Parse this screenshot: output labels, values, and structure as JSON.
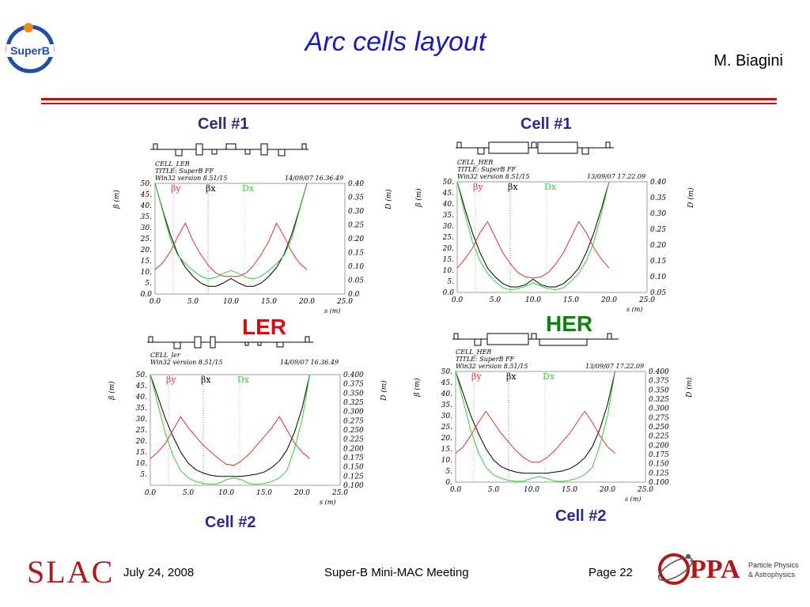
{
  "slide": {
    "title": "Arc cells layout",
    "author": "M. Biagini",
    "logo_text": "SuperB",
    "labels": {
      "cell1_ler": "Cell #1",
      "cell1_her": "Cell #1",
      "cell2_ler": "Cell #2",
      "cell2_her": "Cell #2",
      "ler": "LER",
      "her": "HER"
    },
    "footer": {
      "date": "July 24, 2008",
      "meeting": "Super-B Mini-MAC Meeting",
      "page": "Page 22",
      "slac": "SLAC",
      "ppa": "PPA",
      "ppa_sub1": "Particle Physics",
      "ppa_sub2": "& Astrophysics"
    },
    "colors": {
      "title": "#1c1cb4",
      "ler": "#d01010",
      "her": "#108010",
      "beta_x": "#000000",
      "beta_y": "#e03030",
      "dispersion": "#30d030"
    }
  },
  "chart_data": [
    {
      "type": "line",
      "id": "ler-cell1",
      "header": [
        "CELL_LER",
        "TITLE: SuperB FF",
        "Win32 version 8.51/15"
      ],
      "date": "14/09/07  16.36.49",
      "xlabel": "s (m)",
      "ylabel_left": "β (m)",
      "ylabel_right": "D (m)",
      "xticks": [
        "0.0",
        "5.0",
        "10.0",
        "15.0",
        "20.0",
        "25.0"
      ],
      "yticks_left": [
        "0.0",
        "5.",
        "10.",
        "15.",
        "20.",
        "25.",
        "30.",
        "35.",
        "40.",
        "45.",
        "50."
      ],
      "yticks_right": [
        "0.0",
        "0.05",
        "0.10",
        "0.15",
        "0.20",
        "0.25",
        "0.30",
        "0.35",
        "0.40"
      ],
      "xlim": [
        0,
        25
      ],
      "ylim": [
        0,
        50
      ],
      "y2lim": [
        0,
        0.4
      ],
      "legend": [
        "βy",
        "βx",
        "Dx"
      ],
      "series": [
        {
          "name": "βx",
          "axis": "left",
          "x": [
            0,
            1,
            2,
            3,
            4,
            5,
            6,
            7,
            8,
            9,
            10,
            11,
            12,
            13,
            14,
            15,
            16,
            17,
            18,
            19,
            20
          ],
          "values": [
            50,
            38,
            27,
            18,
            12,
            8,
            5,
            3.5,
            3.5,
            5,
            7,
            5,
            3.5,
            3.5,
            5,
            8,
            12,
            18,
            27,
            38,
            50
          ]
        },
        {
          "name": "βy",
          "axis": "left",
          "x": [
            0,
            1,
            2,
            3,
            4,
            5,
            6,
            7,
            8,
            9,
            10,
            11,
            12,
            13,
            14,
            15,
            16,
            17,
            18,
            19,
            20
          ],
          "values": [
            11,
            14,
            19,
            26,
            32,
            24,
            18,
            13,
            9.5,
            8,
            8,
            8,
            9.5,
            13,
            18,
            24,
            32,
            26,
            19,
            14,
            11
          ]
        },
        {
          "name": "Dx",
          "axis": "right",
          "x": [
            0,
            1,
            2,
            3,
            4,
            5,
            6,
            7,
            8,
            9,
            10,
            11,
            12,
            13,
            14,
            15,
            16,
            17,
            18,
            19,
            20
          ],
          "values": [
            0.4,
            0.3,
            0.2,
            0.14,
            0.11,
            0.085,
            0.065,
            0.055,
            0.06,
            0.075,
            0.085,
            0.075,
            0.06,
            0.055,
            0.065,
            0.085,
            0.11,
            0.14,
            0.2,
            0.3,
            0.4
          ]
        }
      ]
    },
    {
      "type": "line",
      "id": "her-cell1",
      "header": [
        "CELL_HER",
        "TITLE: SuperB FF",
        "Win32 version 8.51/15"
      ],
      "date": "13/09/07  17.22.09",
      "xlabel": "s (m)",
      "ylabel_left": "β (m)",
      "ylabel_right": "D (m)",
      "xticks": [
        "0.0",
        "5.0",
        "10.0",
        "15.0",
        "20.0",
        "25.0"
      ],
      "yticks_left": [
        "0.0",
        "5.",
        "10.",
        "15.",
        "20.",
        "25.",
        "30.",
        "35.",
        "40.",
        "45.",
        "50."
      ],
      "yticks_right": [
        "0.05",
        "0.10",
        "0.15",
        "0.20",
        "0.25",
        "0.30",
        "0.35",
        "0.40"
      ],
      "xlim": [
        0,
        25
      ],
      "ylim": [
        0,
        50
      ],
      "y2lim": [
        0.05,
        0.4
      ],
      "legend": [
        "βy",
        "βx",
        "Dx"
      ],
      "series": [
        {
          "name": "βx",
          "axis": "left",
          "x": [
            0,
            1,
            2,
            3,
            4,
            5,
            6,
            7,
            8,
            9,
            10,
            11,
            12,
            13,
            14,
            15,
            16,
            17,
            18,
            19,
            20
          ],
          "values": [
            50,
            38,
            27,
            18,
            11,
            7,
            4,
            2.5,
            2.5,
            3.5,
            6,
            3.5,
            2.5,
            2.5,
            4,
            7,
            11,
            18,
            27,
            38,
            50
          ]
        },
        {
          "name": "βy",
          "axis": "left",
          "x": [
            0,
            1,
            2,
            3,
            4,
            5,
            6,
            7,
            8,
            9,
            10,
            11,
            12,
            13,
            14,
            15,
            16,
            17,
            18,
            19,
            20
          ],
          "values": [
            11,
            15,
            20,
            27,
            32,
            25,
            18,
            13,
            9,
            7,
            6.5,
            7,
            9,
            13,
            18,
            25,
            32,
            27,
            20,
            15,
            11
          ]
        },
        {
          "name": "Dx",
          "axis": "right",
          "x": [
            0,
            1,
            2,
            3,
            4,
            5,
            6,
            7,
            8,
            9,
            10,
            11,
            12,
            13,
            14,
            15,
            16,
            17,
            18,
            19,
            20
          ],
          "values": [
            0.4,
            0.3,
            0.21,
            0.15,
            0.11,
            0.085,
            0.065,
            0.058,
            0.062,
            0.07,
            0.08,
            0.07,
            0.062,
            0.058,
            0.065,
            0.085,
            0.11,
            0.15,
            0.21,
            0.3,
            0.4
          ]
        }
      ]
    },
    {
      "type": "line",
      "id": "ler-cell2",
      "header": [
        "CELL_ler",
        "Win32 version 8.51/15"
      ],
      "date": "14/09/07  16.36.49",
      "xlabel": "s (m)",
      "ylabel_left": "β (m)",
      "ylabel_right": "D (m)",
      "xticks": [
        "0.0",
        "5.0",
        "10.0",
        "15.0",
        "20.0",
        "25.0"
      ],
      "yticks_left": [
        "5.",
        "10.",
        "15.",
        "20.",
        "25.",
        "30.",
        "35.",
        "40.",
        "45.",
        "50."
      ],
      "yticks_right": [
        "0.100",
        "0.125",
        "0.150",
        "0.175",
        "0.200",
        "0.225",
        "0.250",
        "0.275",
        "0.300",
        "0.325",
        "0.350",
        "0.375",
        "0.400"
      ],
      "xlim": [
        0,
        25
      ],
      "ylim": [
        0,
        50
      ],
      "y2lim": [
        0.1,
        0.4
      ],
      "legend": [
        "βy",
        "βx",
        "Dx"
      ],
      "series": [
        {
          "name": "βx",
          "axis": "left",
          "x": [
            0,
            1,
            2,
            3,
            4,
            5,
            6,
            7,
            8,
            9,
            10,
            11,
            12,
            13,
            14,
            15,
            16,
            17,
            18,
            19,
            20,
            21
          ],
          "values": [
            50,
            40,
            30,
            22,
            15,
            10,
            7,
            5.5,
            4.5,
            4,
            4,
            4,
            4,
            4.5,
            5,
            6,
            8,
            11,
            16,
            24,
            35,
            50
          ]
        },
        {
          "name": "βy",
          "axis": "left",
          "x": [
            0,
            1,
            2,
            3,
            4,
            5,
            6,
            7,
            8,
            9,
            10,
            11,
            12,
            13,
            14,
            15,
            16,
            17,
            18,
            19,
            20,
            21
          ],
          "values": [
            12,
            15,
            19,
            25,
            31,
            26,
            22,
            18,
            15,
            12,
            9.5,
            9,
            11,
            14,
            18,
            22,
            26,
            31,
            25,
            19,
            15,
            12
          ]
        },
        {
          "name": "Dx",
          "axis": "right",
          "x": [
            0,
            1,
            2,
            3,
            4,
            5,
            6,
            7,
            8,
            9,
            10,
            11,
            12,
            13,
            14,
            15,
            16,
            17,
            18,
            19,
            20,
            21
          ],
          "values": [
            0.4,
            0.32,
            0.24,
            0.18,
            0.14,
            0.12,
            0.11,
            0.105,
            0.103,
            0.105,
            0.115,
            0.12,
            0.115,
            0.105,
            0.103,
            0.105,
            0.11,
            0.12,
            0.14,
            0.2,
            0.28,
            0.4
          ]
        }
      ]
    },
    {
      "type": "line",
      "id": "her-cell2",
      "header": [
        "CELL_HER",
        "TITLE: SuperB FF",
        "Win32 version 8.51/15"
      ],
      "date": "13/09/07  17.22.09",
      "xlabel": "s (m)",
      "ylabel_left": "β (m)",
      "ylabel_right": "D (m)",
      "xticks": [
        "0.0",
        "5.0",
        "10.0",
        "15.0",
        "20.0",
        "25.0"
      ],
      "yticks_left": [
        "0.",
        "5.",
        "10.",
        "15.",
        "20.",
        "25.",
        "30.",
        "35.",
        "40.",
        "45.",
        "50."
      ],
      "yticks_right": [
        "0.100",
        "0.125",
        "0.150",
        "0.175",
        "0.200",
        "0.225",
        "0.250",
        "0.275",
        "0.300",
        "0.325",
        "0.350",
        "0.375",
        "0.400"
      ],
      "xlim": [
        0,
        25
      ],
      "ylim": [
        0,
        50
      ],
      "y2lim": [
        0.1,
        0.4
      ],
      "legend": [
        "βy",
        "βx",
        "Dx"
      ],
      "series": [
        {
          "name": "βx",
          "axis": "left",
          "x": [
            0,
            1,
            2,
            3,
            4,
            5,
            6,
            7,
            8,
            9,
            10,
            11,
            12,
            13,
            14,
            15,
            16,
            17,
            18,
            19,
            20,
            21
          ],
          "values": [
            50,
            40,
            30,
            22,
            15,
            10,
            7,
            5.5,
            4.5,
            4,
            4,
            4,
            4,
            4.5,
            5,
            6,
            8,
            11,
            16,
            24,
            35,
            50
          ]
        },
        {
          "name": "βy",
          "axis": "left",
          "x": [
            0,
            1,
            2,
            3,
            4,
            5,
            6,
            7,
            8,
            9,
            10,
            11,
            12,
            13,
            14,
            15,
            16,
            17,
            18,
            19,
            20,
            21
          ],
          "values": [
            13,
            16,
            21,
            27,
            32,
            27,
            22,
            18,
            14,
            11,
            9,
            9,
            11,
            14,
            18,
            22,
            27,
            32,
            27,
            21,
            16,
            13
          ]
        },
        {
          "name": "Dx",
          "axis": "right",
          "x": [
            0,
            1,
            2,
            3,
            4,
            5,
            6,
            7,
            8,
            9,
            10,
            11,
            12,
            13,
            14,
            15,
            16,
            17,
            18,
            19,
            20,
            21
          ],
          "values": [
            0.4,
            0.32,
            0.24,
            0.18,
            0.14,
            0.12,
            0.11,
            0.105,
            0.102,
            0.103,
            0.11,
            0.115,
            0.11,
            0.103,
            0.102,
            0.105,
            0.11,
            0.12,
            0.14,
            0.2,
            0.28,
            0.4
          ]
        }
      ]
    }
  ]
}
